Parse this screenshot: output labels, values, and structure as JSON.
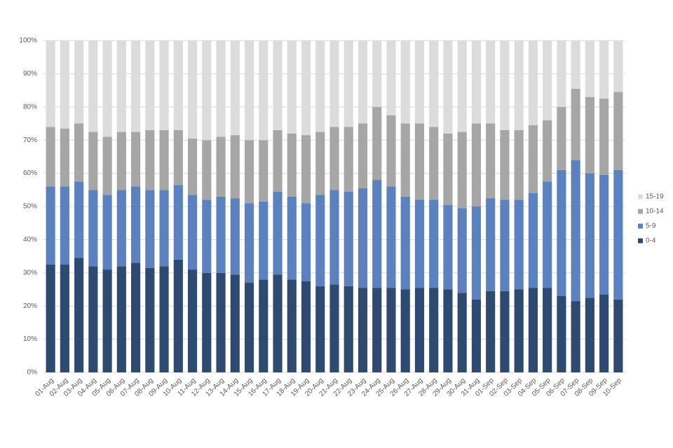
{
  "chart_data": {
    "type": "stacked_bar",
    "categories": [
      "01-Aug",
      "02-Aug",
      "03-Aug",
      "04-Aug",
      "05-Aug",
      "06-Aug",
      "07-Aug",
      "08-Aug",
      "09-Aug",
      "10-Aug",
      "11-Aug",
      "12-Aug",
      "13-Aug",
      "14-Aug",
      "15-Aug",
      "16-Aug",
      "17-Aug",
      "18-Aug",
      "19-Aug",
      "20-Aug",
      "21-Aug",
      "22-Aug",
      "23-Aug",
      "24-Aug",
      "25-Aug",
      "26-Aug",
      "27-Aug",
      "28-Aug",
      "29-Aug",
      "30-Aug",
      "31-Aug",
      "01-Sep",
      "02-Sep",
      "03-Sep",
      "04-Sep",
      "05-Sep",
      "06-Sep",
      "07-Sep",
      "08-Sep",
      "09-Sep",
      "10-Sep"
    ],
    "series": [
      {
        "name": "0-4",
        "color": "#2e4a70",
        "values": [
          32.5,
          32.5,
          34.5,
          32,
          31,
          32,
          33,
          31.5,
          32,
          34,
          31,
          30,
          30,
          29.5,
          27,
          28,
          29.5,
          28,
          27.5,
          26,
          26.5,
          26,
          25.5,
          25.5,
          25.5,
          25,
          25.5,
          25.5,
          25,
          24,
          22,
          24.5,
          24.5,
          25,
          25.5,
          25.5,
          23,
          21.5,
          22.5,
          23.5,
          22
        ]
      },
      {
        "name": "5-9",
        "color": "#5b82bf",
        "values": [
          23.5,
          23.5,
          23,
          23,
          22.5,
          23,
          23,
          23.5,
          23,
          22.5,
          22.5,
          22,
          23,
          23,
          24,
          23.5,
          25,
          25,
          23.5,
          27.5,
          28.5,
          28.5,
          30,
          32.5,
          30.5,
          28,
          26.5,
          26.5,
          25.5,
          25.5,
          28,
          28,
          27.5,
          27,
          28.5,
          32,
          38,
          42.5,
          37.5,
          36,
          39
        ]
      },
      {
        "name": "10-14",
        "color": "#a6a6a6",
        "values": [
          18,
          17.5,
          17.5,
          17.5,
          17.5,
          17.5,
          16.5,
          18,
          18,
          16.5,
          17,
          18,
          18,
          19,
          19,
          18.5,
          18.5,
          19,
          20.5,
          19,
          19,
          19.5,
          19.5,
          22,
          21.5,
          22,
          23,
          22,
          21.5,
          23,
          25,
          22.5,
          21,
          21,
          20.5,
          18.5,
          19,
          21.5,
          23,
          23,
          23.5
        ]
      },
      {
        "name": "15-19",
        "color": "#dcdcdc",
        "values": [
          26,
          26.5,
          25,
          27.5,
          29,
          27.5,
          27.5,
          27,
          27,
          27,
          29.5,
          30,
          29,
          28.5,
          30,
          30,
          27,
          28,
          28.5,
          27.5,
          26,
          26,
          25,
          20,
          22.5,
          25,
          25,
          26,
          28,
          27.5,
          25,
          25,
          27,
          27,
          25.5,
          24,
          20,
          14.5,
          17,
          17.5,
          15.5
        ]
      }
    ],
    "ylim": [
      0,
      100
    ],
    "yticks": [
      {
        "value": 0,
        "label": "0%"
      },
      {
        "value": 10,
        "label": "10%"
      },
      {
        "value": 20,
        "label": "20%"
      },
      {
        "value": 30,
        "label": "30%"
      },
      {
        "value": 40,
        "label": "40%"
      },
      {
        "value": 50,
        "label": "50%"
      },
      {
        "value": 60,
        "label": "60%"
      },
      {
        "value": 70,
        "label": "70%"
      },
      {
        "value": 80,
        "label": "80%"
      },
      {
        "value": 90,
        "label": "90%"
      },
      {
        "value": 100,
        "label": "100%"
      }
    ],
    "grid": true,
    "legend": "right"
  }
}
